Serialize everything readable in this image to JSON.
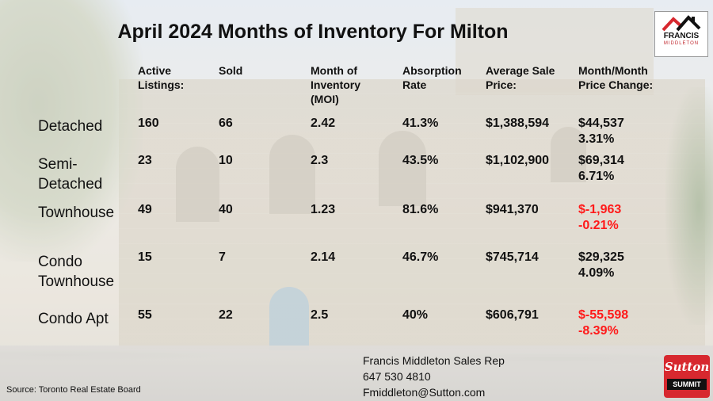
{
  "title": "April 2024 Months of Inventory For Milton",
  "columns": [
    "Active\nListings:",
    "Sold",
    "Month of\nInventory\n(MOI)",
    "Absorption\nRate",
    "Average Sale\nPrice:",
    "Month/Month\nPrice Change:"
  ],
  "rows": [
    {
      "label": "Detached",
      "active": "160",
      "sold": "66",
      "moi": "2.42",
      "absorption": "41.3%",
      "avg_price": "$1,388,594",
      "change": "$44,537\n3.31%"
    },
    {
      "label": "Semi-\nDetached",
      "active": "23",
      "sold": "10",
      "moi": "2.3",
      "absorption": "43.5%",
      "avg_price": "$1,102,900",
      "change": "$69,314\n6.71%"
    },
    {
      "label": "Townhouse",
      "active": "49",
      "sold": "40",
      "moi": "1.23",
      "absorption": "81.6%",
      "avg_price": "$941,370",
      "change": "$-1,963\n-0.21%"
    },
    {
      "label": "Condo\nTownhouse",
      "active": "15",
      "sold": "7",
      "moi": "2.14",
      "absorption": "46.7%",
      "avg_price": "$745,714",
      "change": "$29,325\n4.09%"
    },
    {
      "label": "Condo Apt",
      "active": "55",
      "sold": "22",
      "moi": "2.5",
      "absorption": "40%",
      "avg_price": "$606,791",
      "change": "$-55,598\n-8.39%"
    }
  ],
  "colors": {
    "negative_change": "#ff1a1a",
    "brand_red": "#d7282f"
  },
  "contact": {
    "name": "Francis Middleton Sales Rep",
    "phone": "647 530 4810",
    "email": "Fmiddleton@Sutton.com"
  },
  "source": "Source: Toronto Real Estate Board",
  "logos": {
    "francis_name": "FRANCIS",
    "francis_sub": "MIDDLETON",
    "sutton_name": "Sutton",
    "sutton_sub": "SUMMIT"
  }
}
